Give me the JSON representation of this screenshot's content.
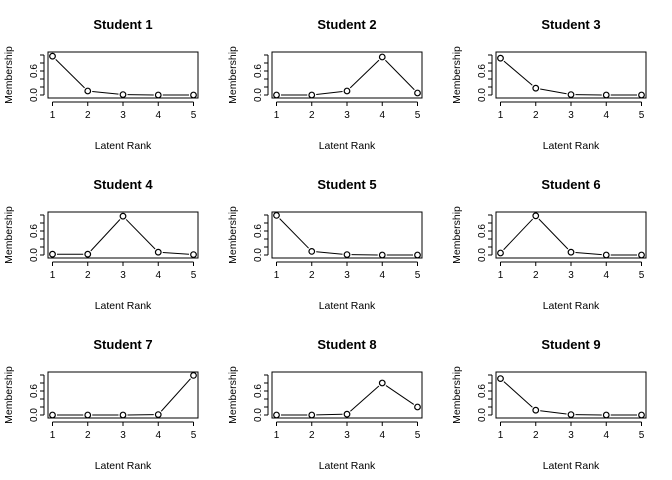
{
  "chart_data": [
    {
      "type": "line",
      "title": "Student 1",
      "xlabel": "Latent Rank",
      "ylabel": "Membership",
      "x": [
        1,
        2,
        3,
        4,
        5
      ],
      "values": [
        0.97,
        0.1,
        0.01,
        0.0,
        0.0
      ],
      "yticks": [
        "0.0",
        "0.6"
      ],
      "ylim": [
        0,
        1
      ],
      "xlim": [
        1,
        5
      ],
      "marker": "open-circle"
    },
    {
      "type": "line",
      "title": "Student 2",
      "xlabel": "Latent Rank",
      "ylabel": "Membership",
      "x": [
        1,
        2,
        3,
        4,
        5
      ],
      "values": [
        0.0,
        0.0,
        0.1,
        0.95,
        0.05
      ],
      "yticks": [
        "0.0",
        "0.6"
      ],
      "ylim": [
        0,
        1
      ],
      "xlim": [
        1,
        5
      ],
      "marker": "open-circle"
    },
    {
      "type": "line",
      "title": "Student 3",
      "xlabel": "Latent Rank",
      "ylabel": "Membership",
      "x": [
        1,
        2,
        3,
        4,
        5
      ],
      "values": [
        0.92,
        0.17,
        0.01,
        0.0,
        0.0
      ],
      "yticks": [
        "0.0",
        "0.6"
      ],
      "ylim": [
        0,
        1
      ],
      "xlim": [
        1,
        5
      ],
      "marker": "open-circle"
    },
    {
      "type": "line",
      "title": "Student 4",
      "xlabel": "Latent Rank",
      "ylabel": "Membership",
      "x": [
        1,
        2,
        3,
        4,
        5
      ],
      "values": [
        0.02,
        0.02,
        0.97,
        0.07,
        0.01
      ],
      "yticks": [
        "0.0",
        "0.6"
      ],
      "ylim": [
        0,
        1
      ],
      "xlim": [
        1,
        5
      ],
      "marker": "open-circle"
    },
    {
      "type": "line",
      "title": "Student 5",
      "xlabel": "Latent Rank",
      "ylabel": "Membership",
      "x": [
        1,
        2,
        3,
        4,
        5
      ],
      "values": [
        0.99,
        0.09,
        0.01,
        0.0,
        0.0
      ],
      "yticks": [
        "0.0",
        "0.6"
      ],
      "ylim": [
        0,
        1
      ],
      "xlim": [
        1,
        5
      ],
      "marker": "open-circle"
    },
    {
      "type": "line",
      "title": "Student 6",
      "xlabel": "Latent Rank",
      "ylabel": "Membership",
      "x": [
        1,
        2,
        3,
        4,
        5
      ],
      "values": [
        0.05,
        0.98,
        0.07,
        0.0,
        0.0
      ],
      "yticks": [
        "0.0",
        "0.6"
      ],
      "ylim": [
        0,
        1
      ],
      "xlim": [
        1,
        5
      ],
      "marker": "open-circle"
    },
    {
      "type": "line",
      "title": "Student 7",
      "xlabel": "Latent Rank",
      "ylabel": "Membership",
      "x": [
        1,
        2,
        3,
        4,
        5
      ],
      "values": [
        0.0,
        0.0,
        0.0,
        0.01,
        0.99
      ],
      "yticks": [
        "0.0",
        "0.6"
      ],
      "ylim": [
        0,
        1
      ],
      "xlim": [
        1,
        5
      ],
      "marker": "open-circle"
    },
    {
      "type": "line",
      "title": "Student 8",
      "xlabel": "Latent Rank",
      "ylabel": "Membership",
      "x": [
        1,
        2,
        3,
        4,
        5
      ],
      "values": [
        0.0,
        0.0,
        0.02,
        0.8,
        0.2
      ],
      "yticks": [
        "0.0",
        "0.6"
      ],
      "ylim": [
        0,
        1
      ],
      "xlim": [
        1,
        5
      ],
      "marker": "open-circle"
    },
    {
      "type": "line",
      "title": "Student 9",
      "xlabel": "Latent Rank",
      "ylabel": "Membership",
      "x": [
        1,
        2,
        3,
        4,
        5
      ],
      "values": [
        0.91,
        0.12,
        0.01,
        0.0,
        0.0
      ],
      "yticks": [
        "0.0",
        "0.6"
      ],
      "ylim": [
        0,
        1
      ],
      "xlim": [
        1,
        5
      ],
      "marker": "open-circle"
    }
  ]
}
